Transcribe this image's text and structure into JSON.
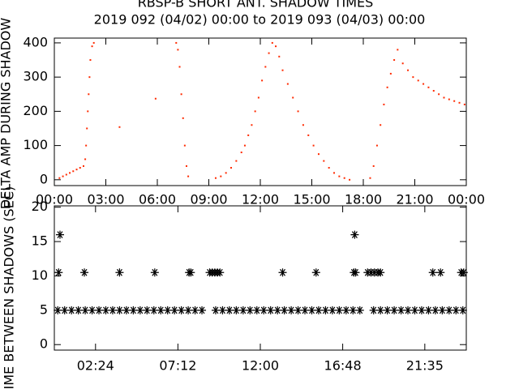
{
  "chart_data": [
    {
      "type": "scatter",
      "title": "RBSP-B SHORT ANT. SHADOW TIMES",
      "subtitle": "2019 092 (04/02) 00:00 to 2019 093 (04/03) 00:00",
      "y_label": "DELTA AMP DURING SHADOW",
      "color": "#ff2a00",
      "marker": "dot",
      "xlim": [
        0,
        24
      ],
      "ylim": [
        -17,
        414
      ],
      "xticks": [
        {
          "value": 0,
          "label": "00:00"
        },
        {
          "value": 3,
          "label": "03:00"
        },
        {
          "value": 6,
          "label": "06:00"
        },
        {
          "value": 9,
          "label": "09:00"
        },
        {
          "value": 12,
          "label": "12:00"
        },
        {
          "value": 15,
          "label": "15:00"
        },
        {
          "value": 18,
          "label": "18:00"
        },
        {
          "value": 21,
          "label": "21:00"
        },
        {
          "value": 24,
          "label": "00:00"
        }
      ],
      "yticks": [
        0,
        100,
        200,
        300,
        400
      ],
      "x": [
        0.3,
        0.5,
        0.7,
        0.9,
        1.1,
        1.3,
        1.5,
        1.7,
        1.8,
        1.85,
        1.9,
        1.95,
        2.0,
        2.05,
        2.1,
        2.2,
        2.3,
        3.8,
        5.9,
        7.1,
        7.2,
        7.3,
        7.4,
        7.5,
        7.6,
        7.7,
        7.8,
        9.4,
        9.7,
        10.0,
        10.3,
        10.6,
        10.9,
        11.1,
        11.3,
        11.5,
        11.7,
        11.9,
        12.1,
        12.3,
        12.5,
        12.7,
        12.9,
        13.1,
        13.3,
        13.6,
        13.9,
        14.2,
        14.5,
        14.8,
        15.1,
        15.4,
        15.7,
        16.0,
        16.3,
        16.6,
        16.9,
        17.2,
        18.4,
        18.6,
        18.8,
        19.0,
        19.2,
        19.4,
        19.6,
        19.8,
        20.0,
        20.3,
        20.6,
        20.9,
        21.2,
        21.5,
        21.8,
        22.1,
        22.4,
        22.7,
        23.0,
        23.3,
        23.6,
        23.9
      ],
      "values": [
        5,
        10,
        15,
        20,
        25,
        30,
        35,
        40,
        60,
        100,
        150,
        200,
        250,
        300,
        350,
        390,
        400,
        154,
        237,
        400,
        380,
        330,
        250,
        180,
        100,
        40,
        10,
        5,
        10,
        20,
        35,
        55,
        80,
        100,
        130,
        160,
        200,
        240,
        290,
        330,
        370,
        400,
        390,
        360,
        320,
        280,
        240,
        200,
        160,
        130,
        100,
        75,
        55,
        35,
        20,
        10,
        5,
        0,
        5,
        40,
        100,
        160,
        220,
        270,
        310,
        350,
        380,
        340,
        320,
        300,
        290,
        280,
        270,
        260,
        250,
        240,
        235,
        230,
        225,
        220
      ]
    },
    {
      "type": "scatter",
      "y_label": "TIME BETWEEN SHADOWS (SEC)",
      "color": "#000000",
      "marker": "asterisk",
      "xlim": [
        0,
        24
      ],
      "ylim": [
        -0.8,
        20.2
      ],
      "xticks": [
        {
          "value": 2.4,
          "label": "02:24"
        },
        {
          "value": 7.2,
          "label": "07:12"
        },
        {
          "value": 12,
          "label": "12:00"
        },
        {
          "value": 16.8,
          "label": "16:48"
        },
        {
          "value": 21.583,
          "label": "21:35"
        }
      ],
      "yticks": [
        0,
        5,
        10,
        15,
        20
      ],
      "x": [
        0.2,
        0.6,
        1,
        1.4,
        1.8,
        2.2,
        2.6,
        3,
        3.4,
        3.8,
        4.2,
        4.6,
        5,
        5.4,
        5.8,
        6.2,
        6.6,
        7,
        7.4,
        7.8,
        8.2,
        8.6,
        9.4,
        9.8,
        10.2,
        10.6,
        11,
        11.4,
        11.8,
        12.2,
        12.6,
        13,
        13.4,
        13.8,
        14.2,
        14.6,
        15,
        15.4,
        15.8,
        16.2,
        16.6,
        17,
        17.4,
        17.8,
        18.6,
        19,
        19.4,
        19.8,
        20.2,
        20.6,
        21,
        21.4,
        21.8,
        22.2,
        22.6,
        23,
        23.4,
        23.8,
        0.25,
        0.33,
        1.75,
        3.8,
        5.85,
        7.85,
        7.95,
        9.05,
        9.2,
        9.35,
        9.5,
        9.65,
        13.3,
        15.25,
        17.45,
        17.55,
        17.5,
        18.25,
        18.45,
        18.65,
        18.85,
        19.0,
        22.05,
        22.5,
        23.7,
        23.85
      ],
      "values": [
        5,
        5,
        5,
        5,
        5,
        5,
        5,
        5,
        5,
        5,
        5,
        5,
        5,
        5,
        5,
        5,
        5,
        5,
        5,
        5,
        5,
        5,
        5,
        5,
        5,
        5,
        5,
        5,
        5,
        5,
        5,
        5,
        5,
        5,
        5,
        5,
        5,
        5,
        5,
        5,
        5,
        5,
        5,
        5,
        5,
        5,
        5,
        5,
        5,
        5,
        5,
        5,
        5,
        5,
        5,
        5,
        5,
        5,
        10.5,
        16,
        10.5,
        10.5,
        10.5,
        10.5,
        10.5,
        10.5,
        10.5,
        10.5,
        10.5,
        10.5,
        10.5,
        10.5,
        10.5,
        10.5,
        16,
        10.5,
        10.5,
        10.5,
        10.5,
        10.5,
        10.5,
        10.5,
        10.5,
        10.5
      ]
    }
  ]
}
